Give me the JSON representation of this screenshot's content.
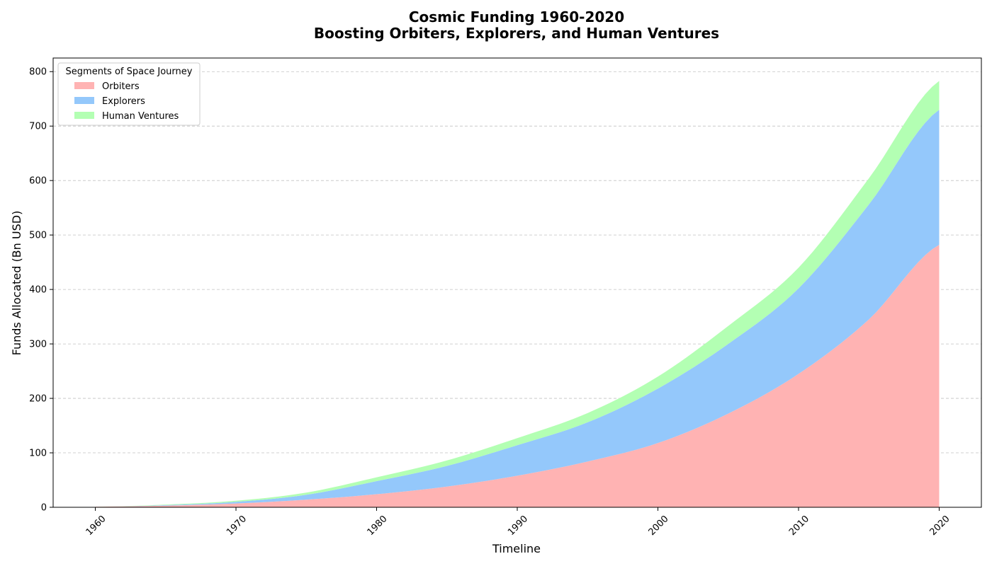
{
  "chart_data": {
    "type": "area",
    "stacked": true,
    "title": [
      "Cosmic Funding 1960-2020",
      "Boosting Orbiters, Explorers, and Human Ventures"
    ],
    "xlabel": "Timeline",
    "ylabel": "Funds Allocated (Bn USD)",
    "xlim": [
      1957,
      2023
    ],
    "ylim": [
      0,
      825
    ],
    "x_ticks": [
      "1960",
      "1970",
      "1980",
      "1990",
      "2000",
      "2010",
      "2020"
    ],
    "y_ticks": [
      "0",
      "100",
      "200",
      "300",
      "400",
      "500",
      "600",
      "700",
      "800"
    ],
    "grid": "y-dashed",
    "legend": {
      "title": "Segments of Space Journey",
      "placement": "upper-left"
    },
    "x": [
      1960,
      1965,
      1970,
      1975,
      1980,
      1985,
      1990,
      1995,
      2000,
      2005,
      2010,
      2015,
      2020
    ],
    "series": [
      {
        "name": "Orbiters",
        "color": "#ffb3b3",
        "values": [
          1,
          3,
          7,
          14,
          24,
          38,
          58,
          84,
          118,
          172,
          245,
          345,
          482
        ]
      },
      {
        "name": "Explorers",
        "color": "#94c8fb",
        "values": [
          0,
          1,
          3,
          9,
          24,
          38,
          56,
          72,
          100,
          128,
          157,
          211,
          248
        ]
      },
      {
        "name": "Human Ventures",
        "color": "#b3ffb3",
        "values": [
          0,
          1,
          2,
          4,
          7,
          10,
          13,
          17,
          22,
          33,
          38,
          48,
          53
        ]
      }
    ]
  }
}
